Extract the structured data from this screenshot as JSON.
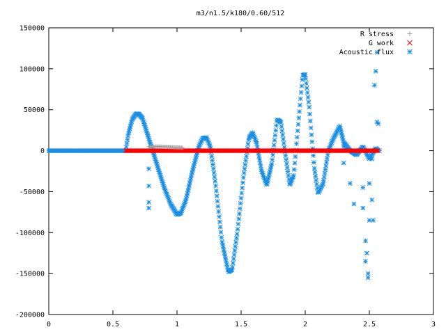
{
  "chart_data": {
    "type": "scatter",
    "title": "m3/n1.5/k180/0.60/512",
    "xlabel": "",
    "ylabel": "",
    "xlim": [
      0,
      3
    ],
    "ylim": [
      -200000,
      150000
    ],
    "x_ticks": [
      "0",
      "0.5",
      "1",
      "1.5",
      "2",
      "2.5",
      "3"
    ],
    "y_ticks": [
      "150000",
      "100000",
      "50000",
      "0",
      "-50000",
      "-100000",
      "-150000",
      "-200000"
    ],
    "legend_position": "top-right",
    "grid": false,
    "series": [
      {
        "name": "R stress",
        "marker": "plus",
        "color": "#a0a0a0",
        "points": [
          [
            0.78,
            5000
          ],
          [
            0.85,
            5000
          ],
          [
            0.9,
            4800
          ],
          [
            0.95,
            4500
          ],
          [
            1.0,
            4000
          ],
          [
            1.05,
            3500
          ]
        ]
      },
      {
        "name": "G work",
        "marker": "cross",
        "color": "#ff0000",
        "x_range": [
          0.6,
          2.57
        ],
        "constant_y": 0
      },
      {
        "name": "Acoustic flux",
        "marker": "asterisk",
        "color": "#1a8fe6",
        "baseline": {
          "x_range": [
            0,
            0.6
          ],
          "y": 0
        },
        "curve": [
          [
            0.6,
            0
          ],
          [
            0.62,
            20000
          ],
          [
            0.65,
            38000
          ],
          [
            0.68,
            45000
          ],
          [
            0.7,
            45000
          ],
          [
            0.73,
            40000
          ],
          [
            0.76,
            25000
          ],
          [
            0.8,
            5000
          ],
          [
            0.85,
            -20000
          ],
          [
            0.9,
            -45000
          ],
          [
            0.95,
            -65000
          ],
          [
            1.0,
            -78000
          ],
          [
            1.03,
            -76000
          ],
          [
            1.07,
            -60000
          ],
          [
            1.12,
            -25000
          ],
          [
            1.17,
            5000
          ],
          [
            1.2,
            15000
          ],
          [
            1.23,
            16000
          ],
          [
            1.26,
            5000
          ],
          [
            1.3,
            -40000
          ],
          [
            1.35,
            -110000
          ],
          [
            1.4,
            -148000
          ],
          [
            1.43,
            -145000
          ],
          [
            1.47,
            -100000
          ],
          [
            1.52,
            -30000
          ],
          [
            1.56,
            15000
          ],
          [
            1.59,
            22000
          ],
          [
            1.62,
            10000
          ],
          [
            1.66,
            -25000
          ],
          [
            1.7,
            -42000
          ],
          [
            1.74,
            -15000
          ],
          [
            1.78,
            38000
          ],
          [
            1.81,
            35000
          ],
          [
            1.85,
            -10000
          ],
          [
            1.88,
            -42000
          ],
          [
            1.91,
            -30000
          ],
          [
            1.95,
            40000
          ],
          [
            1.98,
            92000
          ],
          [
            2.0,
            93000
          ],
          [
            2.03,
            55000
          ],
          [
            2.07,
            -20000
          ],
          [
            2.1,
            -52000
          ],
          [
            2.14,
            -40000
          ],
          [
            2.18,
            0
          ],
          [
            2.22,
            15000
          ],
          [
            2.27,
            30000
          ],
          [
            2.3,
            10000
          ],
          [
            2.35,
            0
          ],
          [
            2.4,
            -5000
          ],
          [
            2.45,
            5000
          ],
          [
            2.5,
            -10000
          ],
          [
            2.55,
            3000
          ],
          [
            2.57,
            0
          ]
        ],
        "scattered": [
          [
            0.78,
            -43000
          ],
          [
            0.78,
            -63000
          ],
          [
            0.78,
            -70000
          ],
          [
            0.78,
            -22000
          ],
          [
            2.3,
            -15000
          ],
          [
            2.3,
            5000
          ],
          [
            2.35,
            -40000
          ],
          [
            2.38,
            -65000
          ],
          [
            2.4,
            -5000
          ],
          [
            2.45,
            -45000
          ],
          [
            2.45,
            -70000
          ],
          [
            2.47,
            -110000
          ],
          [
            2.47,
            -135000
          ],
          [
            2.48,
            -125000
          ],
          [
            2.49,
            -150000
          ],
          [
            2.49,
            -155000
          ],
          [
            2.5,
            -85000
          ],
          [
            2.5,
            -40000
          ],
          [
            2.52,
            -60000
          ],
          [
            2.52,
            -10000
          ],
          [
            2.53,
            -85000
          ],
          [
            2.54,
            80000
          ],
          [
            2.55,
            97000
          ],
          [
            2.56,
            120000
          ],
          [
            2.56,
            35000
          ],
          [
            2.57,
            33000
          ],
          [
            2.58,
            0
          ]
        ]
      }
    ]
  }
}
